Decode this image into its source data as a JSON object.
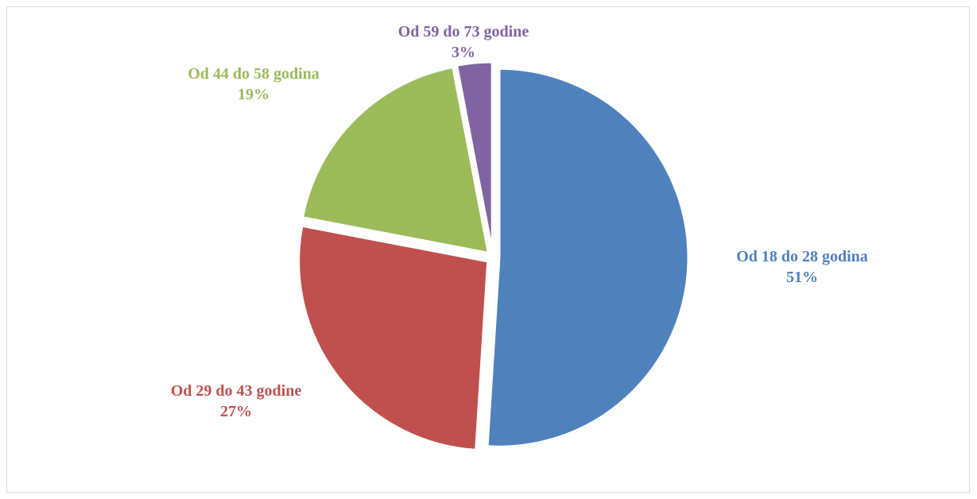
{
  "chart_data": {
    "type": "pie",
    "slices": [
      {
        "label": "Od 18 do 28 godina",
        "value": 51,
        "percent_label": "51%",
        "color": "#4f81bd"
      },
      {
        "label": "Od 29 do 43 godine",
        "value": 27,
        "percent_label": "27%",
        "color": "#c0504d"
      },
      {
        "label": "Od 44 do 58 godina",
        "value": 19,
        "percent_label": "19%",
        "color": "#9bbb59"
      },
      {
        "label": "Od 59 do 73 godine",
        "value": 3,
        "percent_label": "3%",
        "color": "#8064a2"
      }
    ],
    "exploded": true
  }
}
